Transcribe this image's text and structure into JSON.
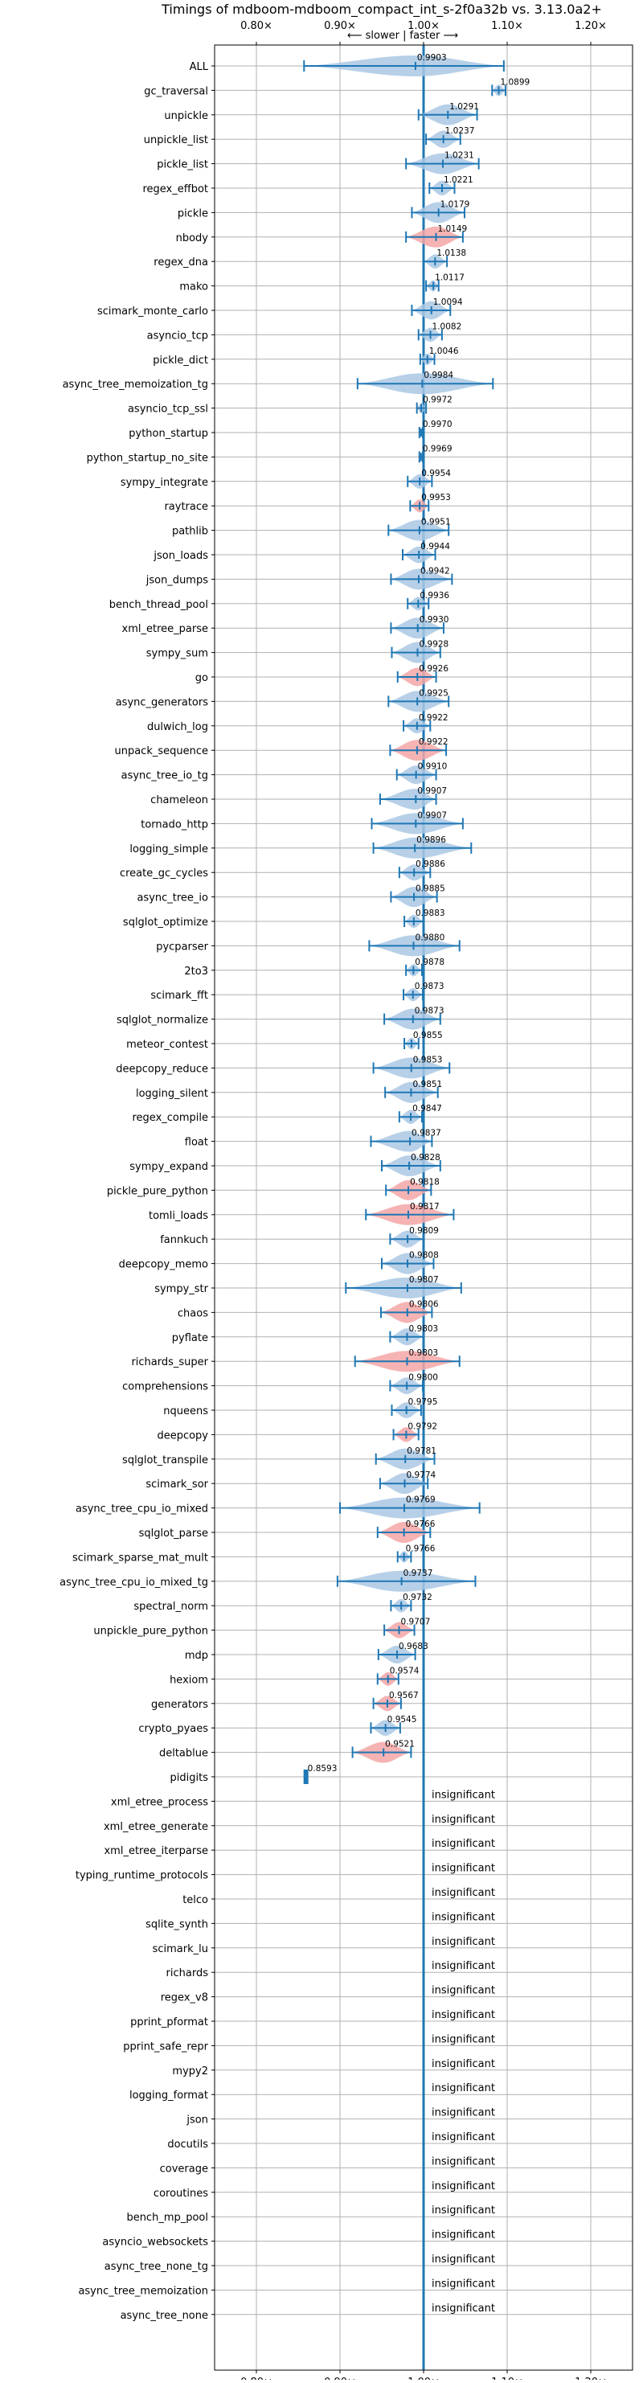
{
  "chart_data": {
    "type": "violin",
    "title": "Timings of mdboom-mdboom_compact_int_s-2f0a32b vs. 3.13.0a2+",
    "subtitle": "⟵ slower | faster ⟶",
    "xlim": [
      0.75,
      1.25
    ],
    "x_ticks": [
      {
        "value": 0.8,
        "label": "0.80×"
      },
      {
        "value": 0.9,
        "label": "0.90×"
      },
      {
        "value": 1.0,
        "label": "1.00×"
      },
      {
        "value": 1.1,
        "label": "1.10×"
      },
      {
        "value": 1.2,
        "label": "1.20×"
      }
    ],
    "reference_line": 1.0,
    "grid": true,
    "colors": {
      "faster": "#aac8e4",
      "slower": "#f4a6a6",
      "line": "#1f77b4",
      "grid": "#b0b0b0"
    },
    "insignificant_label": "insignificant",
    "benchmarks": [
      {
        "name": "ALL",
        "value": 0.9903,
        "label": "0.9903",
        "lo": 0.857,
        "hi": 1.096,
        "status": "faster"
      },
      {
        "name": "gc_traversal",
        "value": 1.0899,
        "label": "1.0899",
        "lo": 1.082,
        "hi": 1.098,
        "status": "faster"
      },
      {
        "name": "unpickle",
        "value": 1.0291,
        "label": "1.0291",
        "lo": 0.994,
        "hi": 1.064,
        "status": "faster"
      },
      {
        "name": "unpickle_list",
        "value": 1.0237,
        "label": "1.0237",
        "lo": 1.003,
        "hi": 1.044,
        "status": "faster"
      },
      {
        "name": "pickle_list",
        "value": 1.0231,
        "label": "1.0231",
        "lo": 0.979,
        "hi": 1.066,
        "status": "faster"
      },
      {
        "name": "regex_effbot",
        "value": 1.0221,
        "label": "1.0221",
        "lo": 1.007,
        "hi": 1.037,
        "status": "faster"
      },
      {
        "name": "pickle",
        "value": 1.0179,
        "label": "1.0179",
        "lo": 0.986,
        "hi": 1.049,
        "status": "faster"
      },
      {
        "name": "nbody",
        "value": 1.0149,
        "label": "1.0149",
        "lo": 0.979,
        "hi": 1.047,
        "status": "slower"
      },
      {
        "name": "regex_dna",
        "value": 1.0138,
        "label": "1.0138",
        "lo": 1.0,
        "hi": 1.028,
        "status": "faster"
      },
      {
        "name": "mako",
        "value": 1.0117,
        "label": "1.0117",
        "lo": 1.003,
        "hi": 1.018,
        "status": "faster"
      },
      {
        "name": "scimark_monte_carlo",
        "value": 1.0094,
        "label": "1.0094",
        "lo": 0.986,
        "hi": 1.032,
        "status": "faster"
      },
      {
        "name": "asyncio_tcp",
        "value": 1.0082,
        "label": "1.0082",
        "lo": 0.994,
        "hi": 1.022,
        "status": "faster"
      },
      {
        "name": "pickle_dict",
        "value": 1.0046,
        "label": "1.0046",
        "lo": 0.996,
        "hi": 1.013,
        "status": "faster"
      },
      {
        "name": "async_tree_memoization_tg",
        "value": 0.9984,
        "label": "0.9984",
        "lo": 0.921,
        "hi": 1.083,
        "status": "faster"
      },
      {
        "name": "asyncio_tcp_ssl",
        "value": 0.9972,
        "label": "0.9972",
        "lo": 0.992,
        "hi": 1.003,
        "status": "faster"
      },
      {
        "name": "python_startup",
        "value": 0.997,
        "label": "0.9970",
        "lo": 0.995,
        "hi": 0.999,
        "status": "faster"
      },
      {
        "name": "python_startup_no_site",
        "value": 0.9969,
        "label": "0.9969",
        "lo": 0.995,
        "hi": 0.999,
        "status": "faster"
      },
      {
        "name": "sympy_integrate",
        "value": 0.9954,
        "label": "0.9954",
        "lo": 0.981,
        "hi": 1.01,
        "status": "faster"
      },
      {
        "name": "raytrace",
        "value": 0.9953,
        "label": "0.9953",
        "lo": 0.984,
        "hi": 1.006,
        "status": "slower"
      },
      {
        "name": "pathlib",
        "value": 0.9951,
        "label": "0.9951",
        "lo": 0.958,
        "hi": 1.03,
        "status": "faster"
      },
      {
        "name": "json_loads",
        "value": 0.9944,
        "label": "0.9944",
        "lo": 0.975,
        "hi": 1.014,
        "status": "faster"
      },
      {
        "name": "json_dumps",
        "value": 0.9942,
        "label": "0.9942",
        "lo": 0.961,
        "hi": 1.034,
        "status": "faster"
      },
      {
        "name": "bench_thread_pool",
        "value": 0.9936,
        "label": "0.9936",
        "lo": 0.981,
        "hi": 1.006,
        "status": "faster"
      },
      {
        "name": "xml_etree_parse",
        "value": 0.993,
        "label": "0.9930",
        "lo": 0.961,
        "hi": 1.024,
        "status": "faster"
      },
      {
        "name": "sympy_sum",
        "value": 0.9928,
        "label": "0.9928",
        "lo": 0.962,
        "hi": 1.02,
        "status": "faster"
      },
      {
        "name": "go",
        "value": 0.9926,
        "label": "0.9926",
        "lo": 0.969,
        "hi": 1.015,
        "status": "slower"
      },
      {
        "name": "async_generators",
        "value": 0.9925,
        "label": "0.9925",
        "lo": 0.958,
        "hi": 1.03,
        "status": "faster"
      },
      {
        "name": "dulwich_log",
        "value": 0.9922,
        "label": "0.9922",
        "lo": 0.976,
        "hi": 1.008,
        "status": "faster"
      },
      {
        "name": "unpack_sequence",
        "value": 0.9922,
        "label": "0.9922",
        "lo": 0.96,
        "hi": 1.027,
        "status": "slower"
      },
      {
        "name": "async_tree_io_tg",
        "value": 0.991,
        "label": "0.9910",
        "lo": 0.968,
        "hi": 1.015,
        "status": "faster"
      },
      {
        "name": "chameleon",
        "value": 0.9907,
        "label": "0.9907",
        "lo": 0.948,
        "hi": 1.015,
        "status": "faster"
      },
      {
        "name": "tornado_http",
        "value": 0.9907,
        "label": "0.9907",
        "lo": 0.938,
        "hi": 1.047,
        "status": "faster"
      },
      {
        "name": "logging_simple",
        "value": 0.9896,
        "label": "0.9896",
        "lo": 0.94,
        "hi": 1.057,
        "status": "faster"
      },
      {
        "name": "create_gc_cycles",
        "value": 0.9886,
        "label": "0.9886",
        "lo": 0.971,
        "hi": 1.008,
        "status": "faster"
      },
      {
        "name": "async_tree_io",
        "value": 0.9885,
        "label": "0.9885",
        "lo": 0.961,
        "hi": 1.016,
        "status": "faster"
      },
      {
        "name": "sqlglot_optimize",
        "value": 0.9883,
        "label": "0.9883",
        "lo": 0.977,
        "hi": 1.0,
        "status": "faster"
      },
      {
        "name": "pycparser",
        "value": 0.988,
        "label": "0.9880",
        "lo": 0.935,
        "hi": 1.043,
        "status": "faster"
      },
      {
        "name": "2to3",
        "value": 0.9878,
        "label": "0.9878",
        "lo": 0.979,
        "hi": 0.998,
        "status": "faster"
      },
      {
        "name": "scimark_fft",
        "value": 0.9873,
        "label": "0.9873",
        "lo": 0.976,
        "hi": 0.999,
        "status": "faster"
      },
      {
        "name": "sqlglot_normalize",
        "value": 0.9873,
        "label": "0.9873",
        "lo": 0.953,
        "hi": 1.02,
        "status": "faster"
      },
      {
        "name": "meteor_contest",
        "value": 0.9855,
        "label": "0.9855",
        "lo": 0.977,
        "hi": 0.994,
        "status": "faster"
      },
      {
        "name": "deepcopy_reduce",
        "value": 0.9853,
        "label": "0.9853",
        "lo": 0.94,
        "hi": 1.031,
        "status": "faster"
      },
      {
        "name": "logging_silent",
        "value": 0.9851,
        "label": "0.9851",
        "lo": 0.954,
        "hi": 1.017,
        "status": "faster"
      },
      {
        "name": "regex_compile",
        "value": 0.9847,
        "label": "0.9847",
        "lo": 0.971,
        "hi": 0.998,
        "status": "faster"
      },
      {
        "name": "float",
        "value": 0.9837,
        "label": "0.9837",
        "lo": 0.937,
        "hi": 1.01,
        "status": "faster"
      },
      {
        "name": "sympy_expand",
        "value": 0.9828,
        "label": "0.9828",
        "lo": 0.95,
        "hi": 1.02,
        "status": "faster"
      },
      {
        "name": "pickle_pure_python",
        "value": 0.9818,
        "label": "0.9818",
        "lo": 0.955,
        "hi": 1.009,
        "status": "slower"
      },
      {
        "name": "tomli_loads",
        "value": 0.9817,
        "label": "0.9817",
        "lo": 0.931,
        "hi": 1.036,
        "status": "slower"
      },
      {
        "name": "fannkuch",
        "value": 0.9809,
        "label": "0.9809",
        "lo": 0.96,
        "hi": 1.0,
        "status": "faster"
      },
      {
        "name": "deepcopy_memo",
        "value": 0.9808,
        "label": "0.9808",
        "lo": 0.95,
        "hi": 1.012,
        "status": "faster"
      },
      {
        "name": "sympy_str",
        "value": 0.9807,
        "label": "0.9807",
        "lo": 0.907,
        "hi": 1.045,
        "status": "faster"
      },
      {
        "name": "chaos",
        "value": 0.9806,
        "label": "0.9806",
        "lo": 0.949,
        "hi": 1.01,
        "status": "slower"
      },
      {
        "name": "pyflate",
        "value": 0.9803,
        "label": "0.9803",
        "lo": 0.96,
        "hi": 1.0,
        "status": "faster"
      },
      {
        "name": "richards_super",
        "value": 0.9803,
        "label": "0.9803",
        "lo": 0.918,
        "hi": 1.043,
        "status": "slower"
      },
      {
        "name": "comprehensions",
        "value": 0.98,
        "label": "0.9800",
        "lo": 0.96,
        "hi": 0.999,
        "status": "faster"
      },
      {
        "name": "nqueens",
        "value": 0.9795,
        "label": "0.9795",
        "lo": 0.962,
        "hi": 0.997,
        "status": "faster"
      },
      {
        "name": "deepcopy",
        "value": 0.9792,
        "label": "0.9792",
        "lo": 0.964,
        "hi": 0.994,
        "status": "slower"
      },
      {
        "name": "sqlglot_transpile",
        "value": 0.9781,
        "label": "0.9781",
        "lo": 0.943,
        "hi": 1.013,
        "status": "faster"
      },
      {
        "name": "scimark_sor",
        "value": 0.9774,
        "label": "0.9774",
        "lo": 0.948,
        "hi": 1.005,
        "status": "faster"
      },
      {
        "name": "async_tree_cpu_io_mixed",
        "value": 0.9769,
        "label": "0.9769",
        "lo": 0.9,
        "hi": 1.067,
        "status": "faster"
      },
      {
        "name": "sqlglot_parse",
        "value": 0.9766,
        "label": "0.9766",
        "lo": 0.945,
        "hi": 1.008,
        "status": "slower"
      },
      {
        "name": "scimark_sparse_mat_mult",
        "value": 0.9766,
        "label": "0.9766",
        "lo": 0.969,
        "hi": 0.985,
        "status": "faster"
      },
      {
        "name": "async_tree_cpu_io_mixed_tg",
        "value": 0.9737,
        "label": "0.9737",
        "lo": 0.897,
        "hi": 1.062,
        "status": "faster"
      },
      {
        "name": "spectral_norm",
        "value": 0.9732,
        "label": "0.9732",
        "lo": 0.961,
        "hi": 0.985,
        "status": "faster"
      },
      {
        "name": "unpickle_pure_python",
        "value": 0.9707,
        "label": "0.9707",
        "lo": 0.953,
        "hi": 0.989,
        "status": "slower"
      },
      {
        "name": "mdp",
        "value": 0.9683,
        "label": "0.9683",
        "lo": 0.946,
        "hi": 0.99,
        "status": "faster"
      },
      {
        "name": "hexiom",
        "value": 0.9574,
        "label": "0.9574",
        "lo": 0.945,
        "hi": 0.97,
        "status": "slower"
      },
      {
        "name": "generators",
        "value": 0.9567,
        "label": "0.9567",
        "lo": 0.94,
        "hi": 0.973,
        "status": "slower"
      },
      {
        "name": "crypto_pyaes",
        "value": 0.9545,
        "label": "0.9545",
        "lo": 0.937,
        "hi": 0.972,
        "status": "faster"
      },
      {
        "name": "deltablue",
        "value": 0.9521,
        "label": "0.9521",
        "lo": 0.915,
        "hi": 0.985,
        "status": "slower"
      },
      {
        "name": "pidigits",
        "value": 0.8593,
        "label": "0.8593",
        "lo": 0.858,
        "hi": 0.861,
        "status": "tiny"
      },
      {
        "name": "xml_etree_process",
        "status": "insignificant"
      },
      {
        "name": "xml_etree_generate",
        "status": "insignificant"
      },
      {
        "name": "xml_etree_iterparse",
        "status": "insignificant"
      },
      {
        "name": "typing_runtime_protocols",
        "status": "insignificant"
      },
      {
        "name": "telco",
        "status": "insignificant"
      },
      {
        "name": "sqlite_synth",
        "status": "insignificant"
      },
      {
        "name": "scimark_lu",
        "status": "insignificant"
      },
      {
        "name": "richards",
        "status": "insignificant"
      },
      {
        "name": "regex_v8",
        "status": "insignificant"
      },
      {
        "name": "pprint_pformat",
        "status": "insignificant"
      },
      {
        "name": "pprint_safe_repr",
        "status": "insignificant"
      },
      {
        "name": "mypy2",
        "status": "insignificant"
      },
      {
        "name": "logging_format",
        "status": "insignificant"
      },
      {
        "name": "json",
        "status": "insignificant"
      },
      {
        "name": "docutils",
        "status": "insignificant"
      },
      {
        "name": "coverage",
        "status": "insignificant"
      },
      {
        "name": "coroutines",
        "status": "insignificant"
      },
      {
        "name": "bench_mp_pool",
        "status": "insignificant"
      },
      {
        "name": "asyncio_websockets",
        "status": "insignificant"
      },
      {
        "name": "async_tree_none_tg",
        "status": "insignificant"
      },
      {
        "name": "async_tree_memoization",
        "status": "insignificant"
      },
      {
        "name": "async_tree_none",
        "status": "insignificant"
      }
    ]
  }
}
